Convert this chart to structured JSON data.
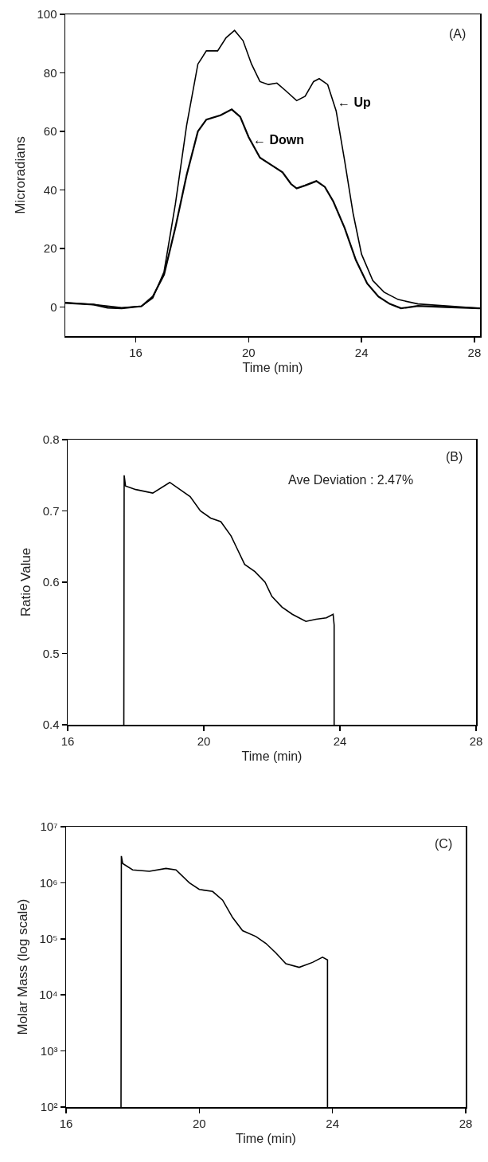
{
  "chart_data": [
    {
      "type": "line",
      "xlabel": "Time (min)",
      "ylabel": "Microradians",
      "xlim": [
        13.5,
        28.2
      ],
      "xticks": [
        16,
        20,
        24,
        28
      ],
      "ylim": [
        -10,
        100
      ],
      "yticks": [
        0,
        20,
        40,
        60,
        80,
        100
      ],
      "line_style": "solid",
      "marker": "none",
      "annotations": [
        "(A)",
        {
          "text": "← Up",
          "x": 23.1,
          "y": 70
        },
        {
          "text": "← Down",
          "x": 20.1,
          "y": 57
        }
      ],
      "series": [
        {
          "color": "#000000",
          "x": [
            13.5,
            14.5,
            15.5,
            16.2,
            16.6,
            17.0,
            17.4,
            17.8,
            18.2,
            18.5,
            18.9,
            19.2,
            19.5,
            19.8,
            20.1,
            20.4,
            20.7,
            21.0,
            21.3,
            21.7,
            22.0,
            22.3,
            22.5,
            22.8,
            23.1,
            23.4,
            23.7,
            24.0,
            24.4,
            24.8,
            25.3,
            26.0,
            27.0,
            28.2
          ],
          "values": [
            1.5,
            0.8,
            -0.3,
            0.2,
            3,
            12,
            35,
            62,
            83,
            87.5,
            87.5,
            92,
            94.5,
            91,
            83,
            77,
            76,
            76.5,
            74,
            70.5,
            72,
            77,
            78,
            76,
            67,
            50,
            32,
            18,
            9,
            5,
            2.5,
            1,
            0.3,
            -0.5
          ]
        },
        {
          "color": "#000000",
          "x": [
            13.5,
            14.5,
            15.0,
            15.5,
            16.2,
            16.6,
            17.0,
            17.4,
            17.8,
            18.2,
            18.5,
            19.0,
            19.4,
            19.7,
            20.0,
            20.4,
            20.8,
            21.2,
            21.5,
            21.7,
            22.0,
            22.4,
            22.7,
            23.0,
            23.4,
            23.8,
            24.2,
            24.6,
            25.0,
            25.4,
            26.0,
            27.0,
            28.2
          ],
          "values": [
            1.3,
            0.8,
            -0.3,
            -0.5,
            0.2,
            3.5,
            11,
            27,
            45,
            60,
            64,
            65.5,
            67.5,
            65,
            58,
            51,
            48.5,
            46,
            42,
            40.5,
            41.5,
            43,
            41,
            36,
            27,
            16,
            8,
            3.5,
            1,
            -0.5,
            0.3,
            -0.1,
            -0.5
          ]
        }
      ]
    },
    {
      "type": "line",
      "xlabel": "Time (min)",
      "ylabel": "Ratio Value",
      "xlim": [
        16,
        28
      ],
      "xticks": [
        16,
        20,
        24,
        28
      ],
      "ylim": [
        0.4,
        0.8
      ],
      "yticks": [
        0.4,
        0.5,
        0.6,
        0.7,
        0.8
      ],
      "line_style": "solid",
      "marker": "none",
      "annotations": [
        "(B)",
        "Ave Deviation : 2.47%"
      ],
      "series": [
        {
          "color": "#000000",
          "x": [
            17.65,
            17.66,
            17.7,
            18.0,
            18.5,
            19.0,
            19.3,
            19.6,
            19.9,
            20.2,
            20.5,
            20.8,
            21.0,
            21.2,
            21.5,
            21.8,
            22.0,
            22.3,
            22.6,
            22.8,
            23.0,
            23.3,
            23.6,
            23.8,
            23.83,
            23.83
          ],
          "values": [
            0.4,
            0.75,
            0.735,
            0.73,
            0.725,
            0.74,
            0.73,
            0.72,
            0.7,
            0.69,
            0.685,
            0.665,
            0.645,
            0.625,
            0.615,
            0.6,
            0.58,
            0.565,
            0.555,
            0.55,
            0.545,
            0.548,
            0.55,
            0.555,
            0.54,
            0.4
          ]
        }
      ]
    },
    {
      "type": "line",
      "xlabel": "Time (min)",
      "ylabel": "Molar Mass (log scale)",
      "log": true,
      "xlim": [
        16,
        28
      ],
      "xticks": [
        16,
        20,
        24,
        28
      ],
      "ylim": [
        100,
        10000000
      ],
      "yticks": [
        {
          "value": 100,
          "label": "10²"
        },
        {
          "value": 1000,
          "label": "10³"
        },
        {
          "value": 10000,
          "label": "10⁴"
        },
        {
          "value": 100000,
          "label": "10⁵"
        },
        {
          "value": 1000000,
          "label": "10⁶"
        },
        {
          "value": 10000000,
          "label": "10⁷"
        }
      ],
      "line_style": "solid",
      "marker": "none",
      "annotations": [
        "(C)"
      ],
      "series": [
        {
          "color": "#000000",
          "x": [
            17.65,
            17.66,
            17.7,
            18.0,
            18.5,
            19.0,
            19.3,
            19.7,
            20.0,
            20.4,
            20.7,
            21.0,
            21.3,
            21.7,
            22.0,
            22.3,
            22.6,
            23.0,
            23.4,
            23.7,
            23.85,
            23.85
          ],
          "values": [
            100,
            3000000,
            2200000,
            1700000,
            1600000,
            1800000,
            1700000,
            1000000,
            760000,
            700000,
            490000,
            240000,
            140000,
            110000,
            83000,
            56000,
            36000,
            31000,
            38000,
            47000,
            42000,
            100
          ]
        }
      ]
    }
  ]
}
